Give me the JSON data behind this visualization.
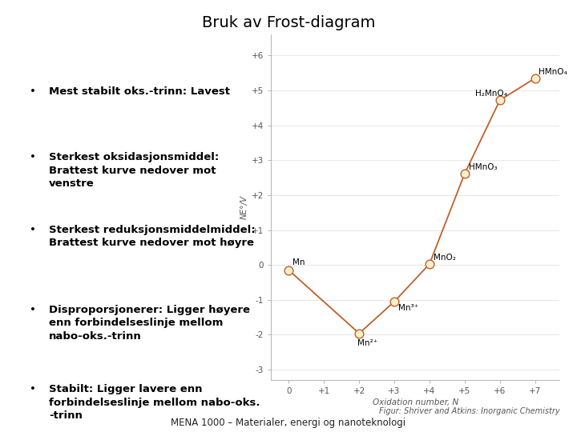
{
  "title": "Bruk av Frost-diagram",
  "background_color": "#ffffff",
  "x_data": [
    0,
    2,
    3,
    4,
    5,
    6,
    7
  ],
  "y_data": [
    -0.15,
    -1.96,
    -1.05,
    0.03,
    2.62,
    4.72,
    5.35
  ],
  "point_labels": [
    "Mn",
    "Mn²⁺",
    "Mn³⁺",
    "MnO₂",
    "HMnO₃",
    "H₂MnO₄",
    "HMnO₄"
  ],
  "label_offsets_x": [
    0.1,
    -0.05,
    0.12,
    0.12,
    0.12,
    -0.7,
    0.1
  ],
  "label_offsets_y": [
    0.22,
    -0.28,
    -0.18,
    0.18,
    0.18,
    0.18,
    0.18
  ],
  "label_ha": [
    "left",
    "left",
    "left",
    "left",
    "left",
    "left",
    "left"
  ],
  "line_color": "#c0602a",
  "point_facecolor": "#f5efcc",
  "point_edgecolor": "#c0602a",
  "point_size": 60,
  "ylabel": "NE°/V",
  "xlabel": "Oxidation number, N",
  "ylim": [
    -3.3,
    6.6
  ],
  "xlim": [
    -0.5,
    7.7
  ],
  "yticks": [
    -3,
    -2,
    -1,
    0,
    1,
    2,
    3,
    4,
    5,
    6
  ],
  "ytick_labels": [
    "-3",
    "-2",
    "-1",
    "0",
    "+1",
    "+2",
    "+3",
    "+4",
    "+5",
    "+6"
  ],
  "xticks": [
    0,
    1,
    2,
    3,
    4,
    5,
    6,
    7
  ],
  "xtick_labels": [
    "0",
    "+1",
    "+2",
    "+3",
    "+4",
    "+5",
    "+6",
    "+7"
  ],
  "bullet_points": [
    "Mest stabilt oks.-trinn: Lavest",
    "Sterkest oksidasjonsmiddel:\nBrattest kurve nedover mot\nvenstre",
    "Sterkest reduksjonsmiddelmiddel:\nBrattest kurve nedover mot høyre",
    "Disproporsjonerer: Ligger høyere\nenn forbindelseslinje mellom\nnabo-oks.-trinn",
    "Stabilt: Ligger lavere enn\nforbindelseslinje mellom nabo-oks.\n-trinn"
  ],
  "footer_text1": "Figur: Shriver and Atkins: Inorganic Chemistry",
  "footer_text2": "MENA 1000 – Materialer, energi og nanoteknologi",
  "label_fontsize": 7.5,
  "axis_label_fontsize": 7.5,
  "tick_fontsize": 7.5,
  "bullet_fontsize": 9.5,
  "title_fontsize": 14
}
